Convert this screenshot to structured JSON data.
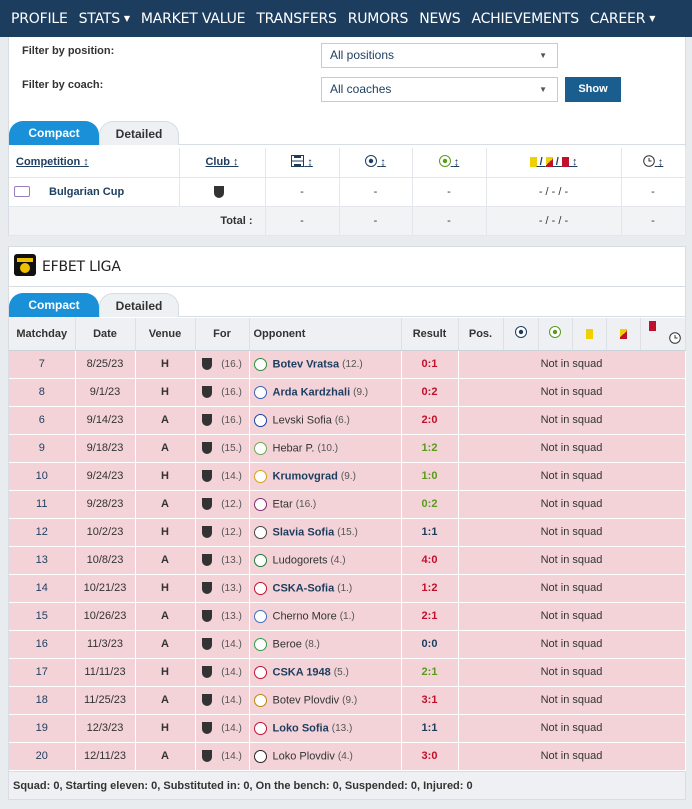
{
  "nav": [
    {
      "label": "PROFILE",
      "dropdown": false
    },
    {
      "label": "STATS",
      "dropdown": true
    },
    {
      "label": "MARKET VALUE",
      "dropdown": false
    },
    {
      "label": "TRANSFERS",
      "dropdown": false
    },
    {
      "label": "RUMORS",
      "dropdown": false
    },
    {
      "label": "NEWS",
      "dropdown": false
    },
    {
      "label": "ACHIEVEMENTS",
      "dropdown": false
    },
    {
      "label": "CAREER",
      "dropdown": true
    }
  ],
  "filters": {
    "position_label": "Filter by position:",
    "position_value": "All positions",
    "coach_label": "Filter by coach:",
    "coach_value": "All coaches",
    "show_label": "Show"
  },
  "tabs": {
    "compact": "Compact",
    "detailed": "Detailed"
  },
  "summary": {
    "headers": {
      "competition": "Competition",
      "club": "Club"
    },
    "rows": [
      {
        "competition": "Bulgarian Cup",
        "apps": "-",
        "goals": "-",
        "assists": "-",
        "cards": "- / - / -",
        "minutes": "-"
      }
    ],
    "total": {
      "label": "Total :",
      "apps": "-",
      "goals": "-",
      "assists": "-",
      "cards": "- / - / -",
      "minutes": "-"
    }
  },
  "league": {
    "name": "EFBET LIGA",
    "headers": {
      "matchday": "Matchday",
      "date": "Date",
      "venue": "Venue",
      "for": "For",
      "opponent": "Opponent",
      "result": "Result",
      "pos": "Pos."
    },
    "matches": [
      {
        "matchday": "7",
        "date": "8/25/23",
        "venue": "H",
        "for_rank": "(16.)",
        "opponent": "Botev Vratsa",
        "opp_rank": "(12.)",
        "bold": true,
        "result": "0:1",
        "outcome": "loss",
        "status": "Not in squad",
        "crest": "#2a8a3a"
      },
      {
        "matchday": "8",
        "date": "9/1/23",
        "venue": "H",
        "for_rank": "(16.)",
        "opponent": "Arda Kardzhali",
        "opp_rank": "(9.)",
        "bold": true,
        "result": "0:2",
        "outcome": "loss",
        "status": "Not in squad",
        "crest": "#3a5fb0"
      },
      {
        "matchday": "6",
        "date": "9/14/23",
        "venue": "A",
        "for_rank": "(16.)",
        "opponent": "Levski Sofia",
        "opp_rank": "(6.)",
        "bold": false,
        "result": "2:0",
        "outcome": "loss",
        "status": "Not in squad",
        "crest": "#1a3fa0"
      },
      {
        "matchday": "9",
        "date": "9/18/23",
        "venue": "A",
        "for_rank": "(15.)",
        "opponent": "Hebar P.",
        "opp_rank": "(10.)",
        "bold": false,
        "result": "1:2",
        "outcome": "win",
        "status": "Not in squad",
        "crest": "#6aa84f"
      },
      {
        "matchday": "10",
        "date": "9/24/23",
        "venue": "H",
        "for_rank": "(14.)",
        "opponent": "Krumovgrad",
        "opp_rank": "(9.)",
        "bold": true,
        "result": "1:0",
        "outcome": "win",
        "status": "Not in squad",
        "crest": "#d4a017"
      },
      {
        "matchday": "11",
        "date": "9/28/23",
        "venue": "A",
        "for_rank": "(12.)",
        "opponent": "Etar",
        "opp_rank": "(16.)",
        "bold": false,
        "result": "0:2",
        "outcome": "win",
        "status": "Not in squad",
        "crest": "#7a2a6a"
      },
      {
        "matchday": "12",
        "date": "10/2/23",
        "venue": "H",
        "for_rank": "(12.)",
        "opponent": "Slavia Sofia",
        "opp_rank": "(15.)",
        "bold": true,
        "result": "1:1",
        "outcome": "draw",
        "status": "Not in squad",
        "crest": "#444444"
      },
      {
        "matchday": "13",
        "date": "10/8/23",
        "venue": "A",
        "for_rank": "(13.)",
        "opponent": "Ludogorets",
        "opp_rank": "(4.)",
        "bold": false,
        "result": "4:0",
        "outcome": "loss",
        "status": "Not in squad",
        "crest": "#1e7a34"
      },
      {
        "matchday": "14",
        "date": "10/21/23",
        "venue": "H",
        "for_rank": "(13.)",
        "opponent": "CSKA-Sofia",
        "opp_rank": "(1.)",
        "bold": true,
        "result": "1:2",
        "outcome": "loss",
        "status": "Not in squad",
        "crest": "#c0102d"
      },
      {
        "matchday": "15",
        "date": "10/26/23",
        "venue": "A",
        "for_rank": "(13.)",
        "opponent": "Cherno More",
        "opp_rank": "(1.)",
        "bold": false,
        "result": "2:1",
        "outcome": "loss",
        "status": "Not in squad",
        "crest": "#3a6fc0"
      },
      {
        "matchday": "16",
        "date": "11/3/23",
        "venue": "A",
        "for_rank": "(14.)",
        "opponent": "Beroe",
        "opp_rank": "(8.)",
        "bold": false,
        "result": "0:0",
        "outcome": "draw",
        "status": "Not in squad",
        "crest": "#2a9a4a"
      },
      {
        "matchday": "17",
        "date": "11/11/23",
        "venue": "H",
        "for_rank": "(14.)",
        "opponent": "CSKA 1948",
        "opp_rank": "(5.)",
        "bold": true,
        "result": "2:1",
        "outcome": "win",
        "status": "Not in squad",
        "crest": "#c0102d"
      },
      {
        "matchday": "18",
        "date": "11/25/23",
        "venue": "A",
        "for_rank": "(14.)",
        "opponent": "Botev Plovdiv",
        "opp_rank": "(9.)",
        "bold": false,
        "result": "3:1",
        "outcome": "loss",
        "status": "Not in squad",
        "crest": "#b8860b"
      },
      {
        "matchday": "19",
        "date": "12/3/23",
        "venue": "H",
        "for_rank": "(14.)",
        "opponent": "Loko Sofia",
        "opp_rank": "(13.)",
        "bold": true,
        "result": "1:1",
        "outcome": "draw",
        "status": "Not in squad",
        "crest": "#c0102d"
      },
      {
        "matchday": "20",
        "date": "12/11/23",
        "venue": "A",
        "for_rank": "(14.)",
        "opponent": "Loko Plovdiv",
        "opp_rank": "(4.)",
        "bold": false,
        "result": "3:0",
        "outcome": "loss",
        "status": "Not in squad",
        "crest": "#222222"
      }
    ],
    "footer": "Squad: 0, Starting eleven: 0, Substituted in: 0, On the bench: 0, Suspended: 0, Injured: 0"
  },
  "colors": {
    "nav_bg": "#1d3d5f",
    "tab_active": "#1990d8",
    "row_bg": "#f3d3d7",
    "loss": "#c0102d",
    "win": "#5a9a1c"
  },
  "icons": [
    "soccer-ball-icon",
    "assist-icon",
    "yellow-card-icon",
    "second-yellow-icon",
    "red-card-icon",
    "clock-icon",
    "lineup-icon",
    "sort-icon"
  ]
}
